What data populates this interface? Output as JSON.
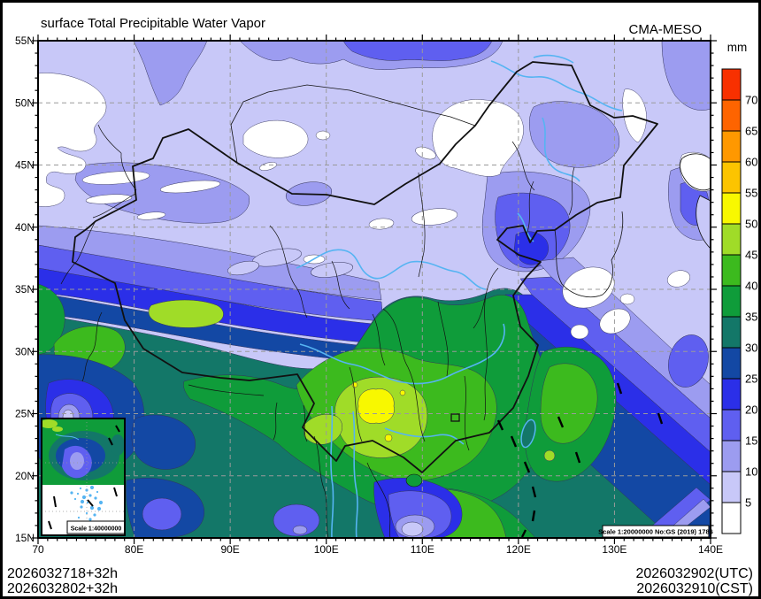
{
  "header": {
    "title": "surface Total Precipitable Water Vapor",
    "model_label": "CMA-MESO"
  },
  "colorbar": {
    "unit_label": "mm",
    "tick_labels": [
      "70",
      "65",
      "60",
      "55",
      "50",
      "45",
      "40",
      "35",
      "30",
      "25",
      "20",
      "15",
      "10",
      "5"
    ],
    "levels_mm": [
      5,
      10,
      15,
      20,
      25,
      30,
      35,
      40,
      45,
      50,
      55,
      60,
      65,
      70
    ],
    "swatch_colors_top_to_bottom": [
      "#f83000",
      "#fe6400",
      "#ff9800",
      "#fcc400",
      "#f8f800",
      "#a0dc28",
      "#3cba1e",
      "#0f9c3a",
      "#137768",
      "#1348a4",
      "#2b2fe8",
      "#5f5ff0",
      "#9c9cf0",
      "#c8c8f8",
      "#ffffff"
    ]
  },
  "axes": {
    "lon_tick_labels": [
      "70",
      "80E",
      "90E",
      "100E",
      "110E",
      "120E",
      "130E",
      "140E"
    ],
    "lat_tick_labels": [
      "55N",
      "50N",
      "45N",
      "40N",
      "35N",
      "30N",
      "25N",
      "20N",
      "15N"
    ]
  },
  "map_labels": {
    "main_scale": "Scale 1:20000000 No:GS (2019) 1786",
    "inset_scale": "Scale 1:40000000"
  },
  "footer": {
    "run_utc": "2026032718+32h",
    "run_cst": "2026032802+32h",
    "valid_utc": "2026032902(UTC)",
    "valid_cst": "2026032910(CST)"
  },
  "chart_data": {
    "type": "heatmap",
    "subtype": "filled-contour-geographic-map",
    "variable": "surface Total Precipitable Water Vapor",
    "unit": "mm",
    "model": "CMA-MESO",
    "domain": {
      "lon_min_e": 70,
      "lon_max_e": 140,
      "lat_min_n": 15,
      "lat_max_n": 55
    },
    "lon_gridlines_e": [
      80,
      90,
      100,
      110,
      120,
      130
    ],
    "lat_gridlines_n": [
      20,
      25,
      30,
      35,
      40,
      45,
      50
    ],
    "contour_levels_mm": [
      5,
      10,
      15,
      20,
      25,
      30,
      35,
      40,
      45,
      50,
      55,
      60,
      65,
      70
    ],
    "palette_low_to_high": [
      "#ffffff",
      "#c8c8f8",
      "#9c9cf0",
      "#5f5ff0",
      "#2b2fe8",
      "#1348a4",
      "#137768",
      "#0f9c3a",
      "#3cba1e",
      "#a0dc28",
      "#f8f800",
      "#fcc400",
      "#ff9800",
      "#fe6400",
      "#f83000"
    ],
    "run_time": "2026032718 UTC / 2026032802 CST",
    "forecast_hour": "+32h",
    "valid_time": "2026032902 UTC / 2026032910 CST",
    "pattern_summary": {
      "north_china_mongolia": "5-15 mm (lavender), dry white patches <5 mm in NW Xinjiang, central Mongolia and NE",
      "tibetan_plateau_south_slope": "sharp gradient bands 15-35 mm (purple/blue/teal) along Himalaya",
      "south_china": "35-50 mm greens with 45-55 mm yellow-green/yellow core near 105-110E 22-27N",
      "east_china_sea": "diagonal NE-SW bands decreasing seaward 35 to 5 mm",
      "max_label_mm": 55,
      "min_label_mm": 5
    }
  }
}
